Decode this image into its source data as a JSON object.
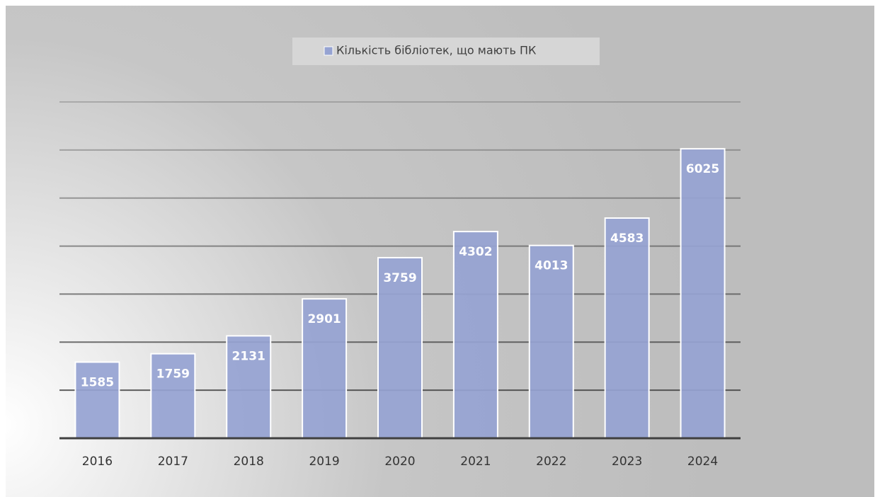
{
  "chart_data": {
    "type": "bar",
    "series": [
      {
        "name": "Кількість бібліотек, що мають ПК",
        "color": "#96a3d2",
        "values": [
          1585,
          1759,
          2131,
          2901,
          3759,
          4302,
          4013,
          4583,
          6025
        ]
      }
    ],
    "categories": [
      "2016",
      "2017",
      "2018",
      "2019",
      "2020",
      "2021",
      "2022",
      "2023",
      "2024"
    ],
    "ylim": [
      0,
      7000
    ],
    "yticks": [
      0,
      1000,
      2000,
      3000,
      4000,
      5000,
      6000,
      7000
    ],
    "grid": true,
    "legend": "top"
  }
}
